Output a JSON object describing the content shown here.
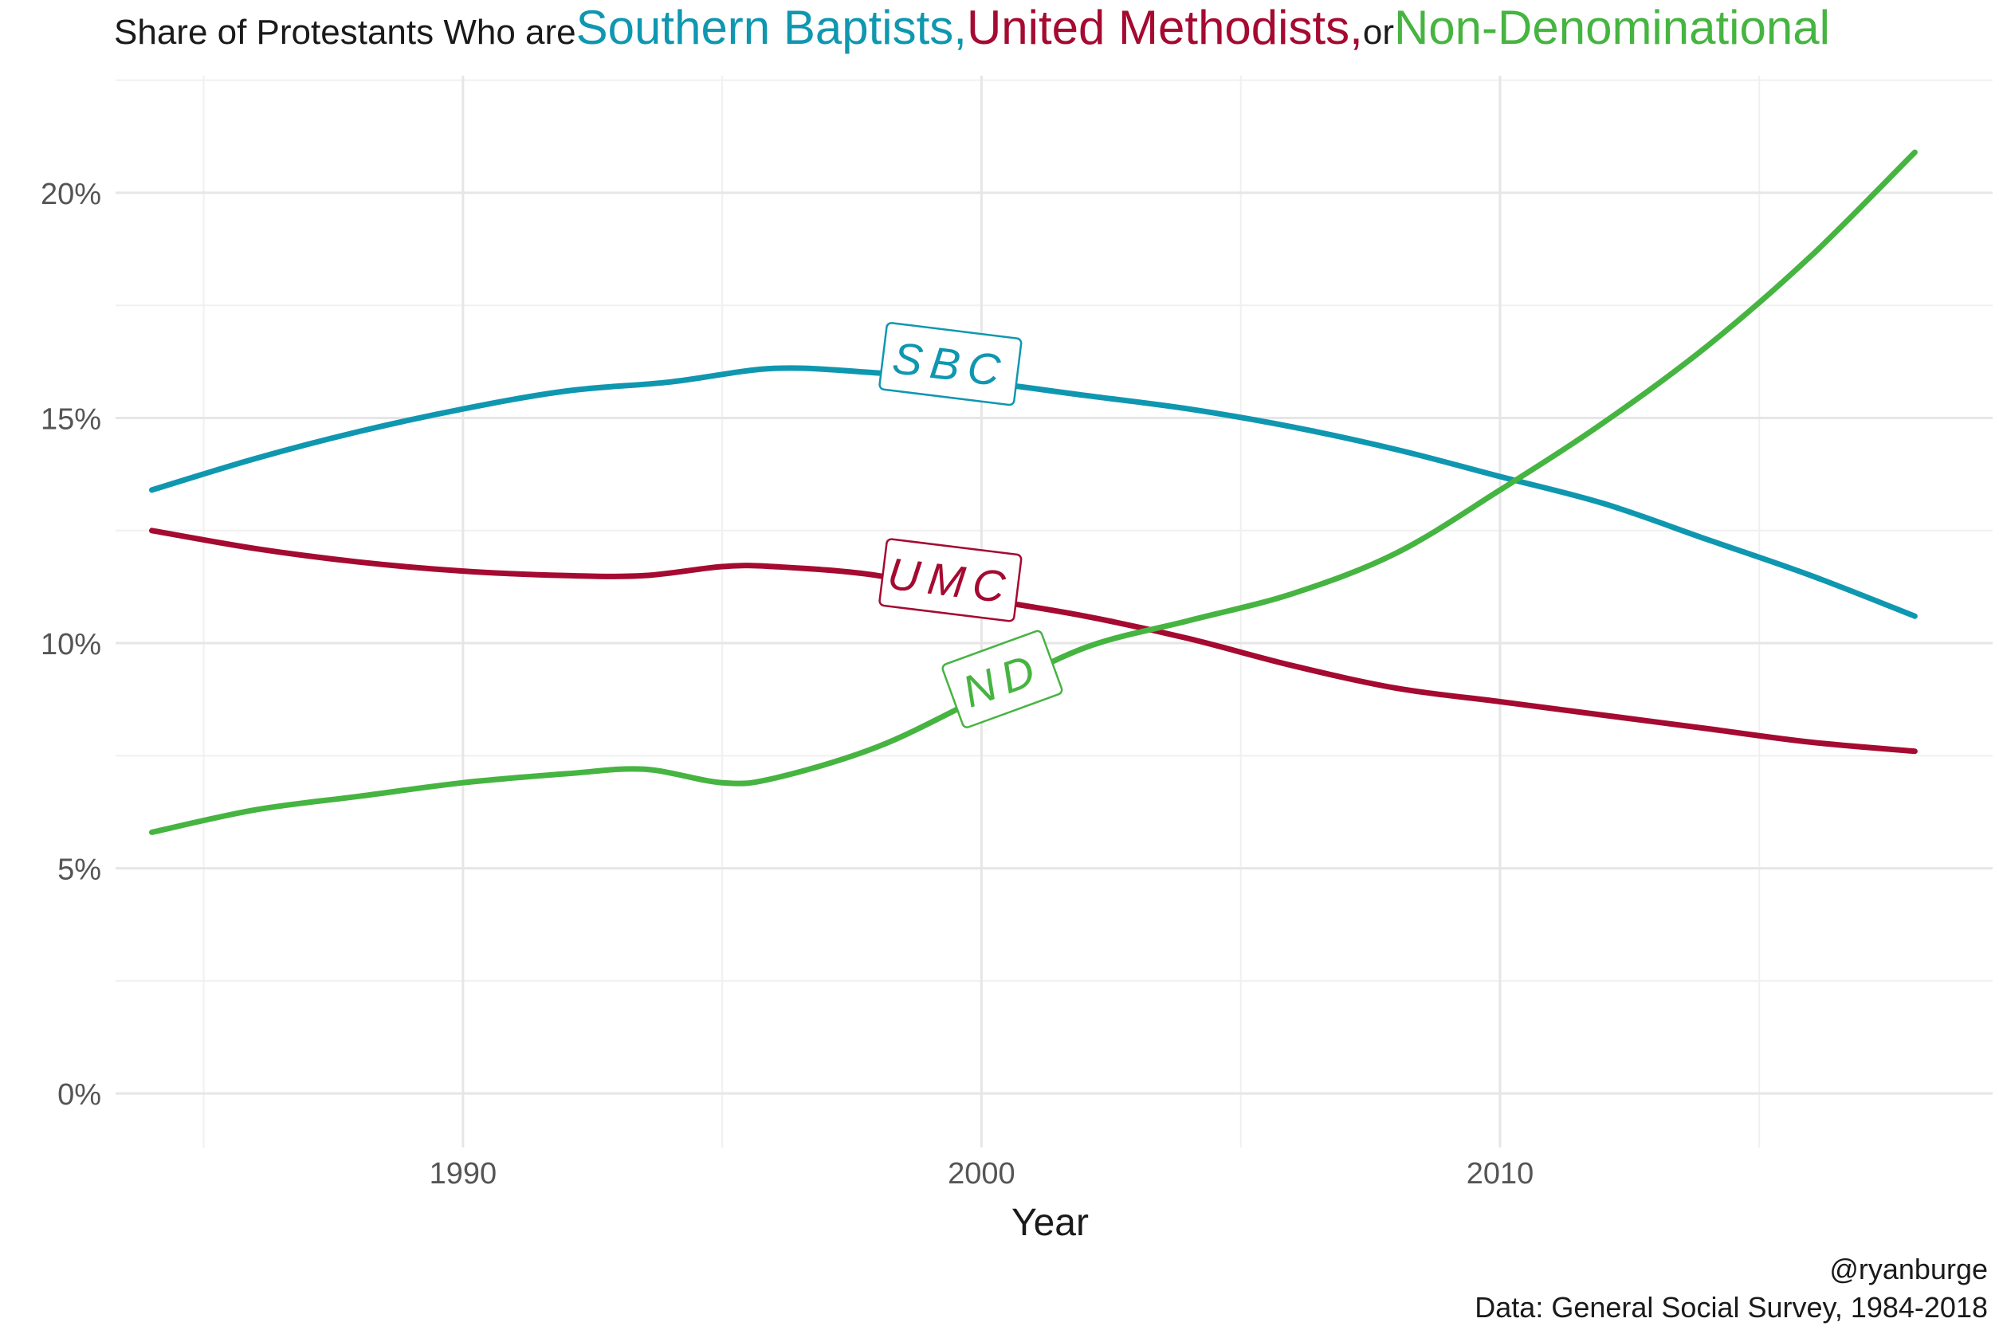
{
  "title": {
    "prefix": "Share of Protestants  Who are ",
    "part_sbc": "Southern Baptists,",
    "part_umc": "United Methodists,",
    "joiner": " or ",
    "part_nd": "Non-Denominational"
  },
  "caption": {
    "handle": "@ryanburge",
    "source": "Data: General Social Survey, 1984-2018"
  },
  "colors": {
    "sbc": "#0f97b0",
    "umc": "#a50a31",
    "nd": "#46b441",
    "grid": "#e6e6e6",
    "axis_text": "#555555"
  },
  "chart_data": {
    "type": "line",
    "xlabel": "Year",
    "ylabel": "",
    "xlim": [
      1983.3,
      2019.5
    ],
    "ylim": [
      -1.2,
      22.6
    ],
    "x_ticks": [
      1990,
      2000,
      2010
    ],
    "x_tick_labels": [
      "1990",
      "2000",
      "2010"
    ],
    "x_minor_ticks": [
      1985,
      1995,
      2005,
      2015
    ],
    "y_ticks": [
      0,
      5,
      10,
      15,
      20
    ],
    "y_tick_labels": [
      "0%",
      "5%",
      "10%",
      "15%",
      "20%"
    ],
    "y_minor_ticks": [
      2.5,
      7.5,
      12.5,
      17.5,
      22.5
    ],
    "grid": true,
    "legend": "none (colored title words and boxed labels on lines)",
    "series": [
      {
        "key": "sbc",
        "name": "SBC",
        "x": [
          1984,
          1986,
          1988,
          1990,
          1992,
          1994,
          1996,
          1998,
          2000,
          2002,
          2004,
          2006,
          2008,
          2010,
          2012,
          2014,
          2016,
          2018
        ],
        "y": [
          13.4,
          14.1,
          14.7,
          15.2,
          15.6,
          15.8,
          16.1,
          16.0,
          15.8,
          15.5,
          15.2,
          14.8,
          14.3,
          13.7,
          13.1,
          12.3,
          11.5,
          10.6
        ],
        "label_at": [
          1999.4,
          16.2
        ]
      },
      {
        "key": "umc",
        "name": "UMC",
        "x": [
          1984,
          1986,
          1988,
          1990,
          1992,
          1993.5,
          1995,
          1996,
          1998,
          2000,
          2002,
          2004,
          2006,
          2008,
          2010,
          2012,
          2014,
          2016,
          2018
        ],
        "y": [
          12.5,
          12.1,
          11.8,
          11.6,
          11.5,
          11.5,
          11.7,
          11.7,
          11.5,
          11.0,
          10.6,
          10.1,
          9.5,
          9.0,
          8.7,
          8.4,
          8.1,
          7.8,
          7.6
        ],
        "label_at": [
          1999.4,
          11.4
        ]
      },
      {
        "key": "nd",
        "name": "ND",
        "x": [
          1984,
          1986,
          1988,
          1990,
          1992,
          1993.5,
          1995,
          1996,
          1998,
          2000,
          2002,
          2004,
          2006,
          2008,
          2010,
          2012,
          2014,
          2016,
          2018
        ],
        "y": [
          5.8,
          6.3,
          6.6,
          6.9,
          7.1,
          7.2,
          6.9,
          7.0,
          7.7,
          8.8,
          9.9,
          10.5,
          11.1,
          12.0,
          13.4,
          14.9,
          16.6,
          18.6,
          20.9
        ],
        "label_at": [
          2000.4,
          9.2
        ]
      }
    ]
  }
}
